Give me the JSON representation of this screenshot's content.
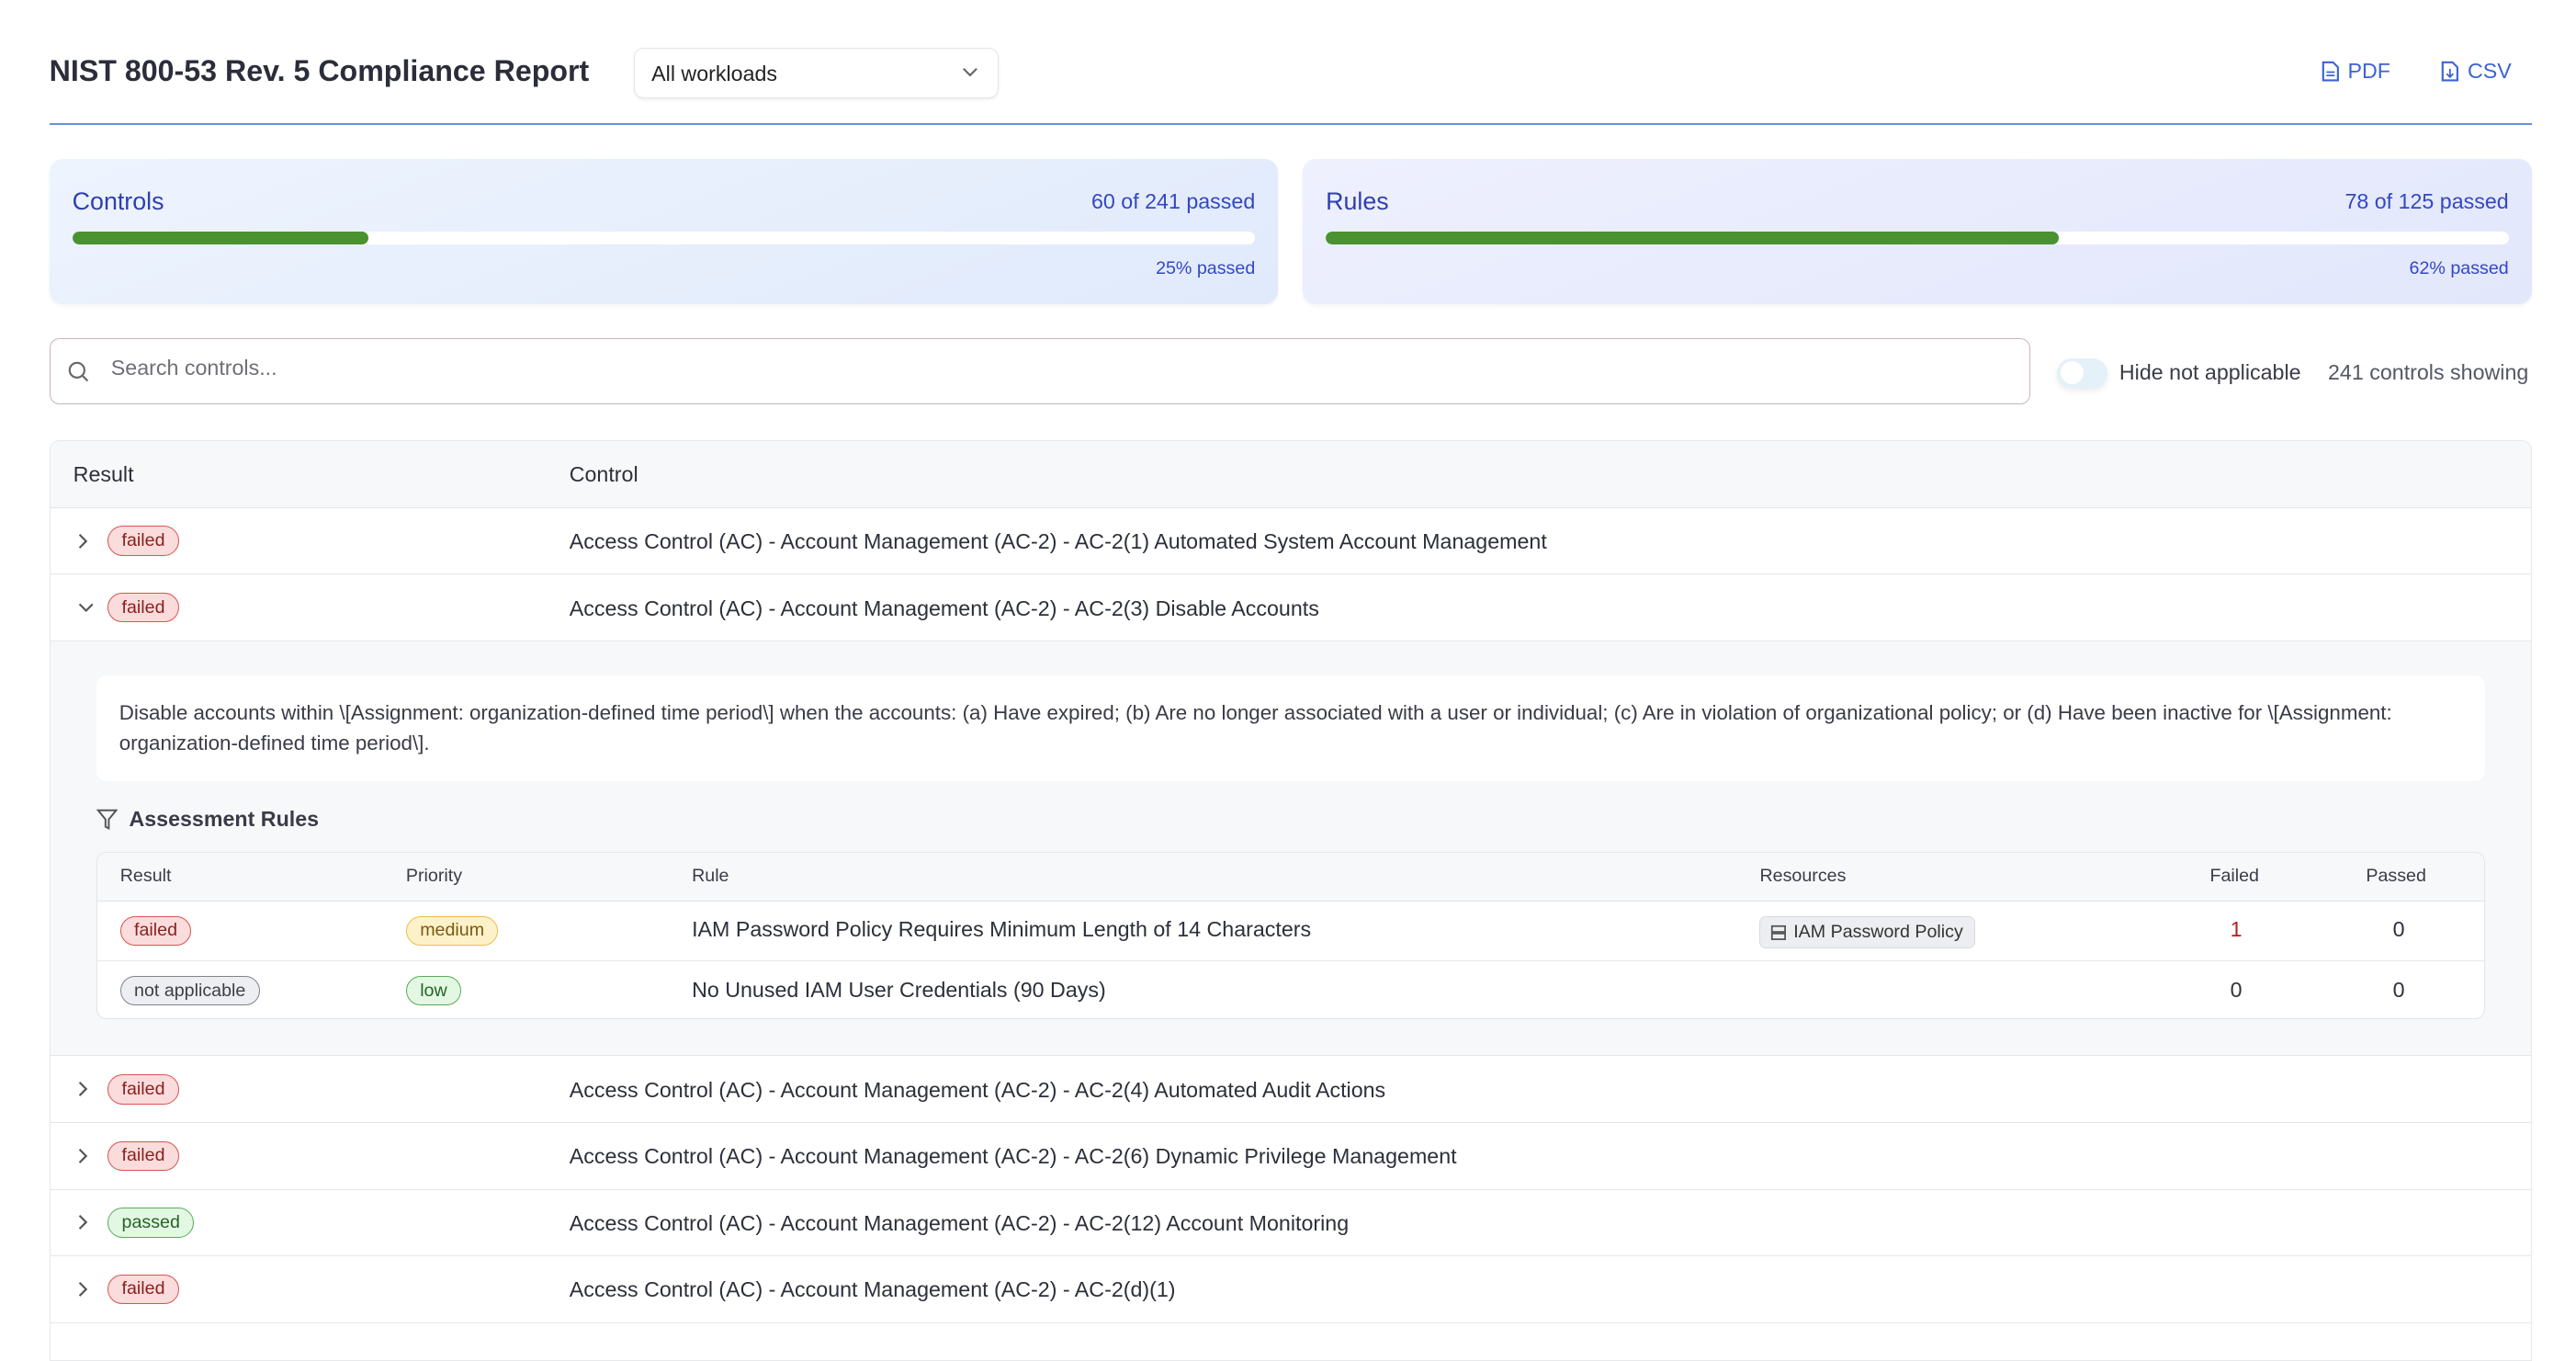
{
  "header": {
    "title": "NIST 800-53 Rev. 5 Compliance Report",
    "workload_select": "All workloads",
    "pdf_label": "PDF",
    "csv_label": "CSV"
  },
  "summary": {
    "controls": {
      "title": "Controls",
      "count": "60 of 241 passed",
      "percent_label": "25% passed",
      "percent": 25
    },
    "rules": {
      "title": "Rules",
      "count": "78 of 125 passed",
      "percent_label": "62% passed",
      "percent": 62
    }
  },
  "filters": {
    "search_placeholder": "Search controls...",
    "search_value": "",
    "hide_na_label": "Hide not applicable",
    "hide_na_on": false,
    "showing": "241 controls showing"
  },
  "table": {
    "headers": {
      "result": "Result",
      "control": "Control"
    },
    "rows": [
      {
        "result": "failed",
        "control": "Access Control (AC) - Account Management (AC-2) - AC-2(1) Automated System Account Management",
        "expanded": false
      },
      {
        "result": "failed",
        "control": "Access Control (AC) - Account Management (AC-2) - AC-2(3) Disable Accounts",
        "expanded": true
      },
      {
        "result": "failed",
        "control": "Access Control (AC) - Account Management (AC-2) - AC-2(4) Automated Audit Actions",
        "expanded": false
      },
      {
        "result": "failed",
        "control": "Access Control (AC) - Account Management (AC-2) - AC-2(6) Dynamic Privilege Management",
        "expanded": false
      },
      {
        "result": "passed",
        "control": "Access Control (AC) - Account Management (AC-2) - AC-2(12) Account Monitoring",
        "expanded": false
      },
      {
        "result": "failed",
        "control": "Access Control (AC) - Account Management (AC-2) - AC-2(d)(1)",
        "expanded": false
      }
    ]
  },
  "expanded": {
    "description": "Disable accounts within \\[Assignment: organization-defined time period\\] when the accounts: (a) Have expired; (b) Are no longer associated with a user or individual; (c) Are in violation of organizational policy; or (d) Have been inactive for \\[Assignment: organization-defined time period\\].",
    "rules_title": "Assessment Rules",
    "headers": {
      "result": "Result",
      "priority": "Priority",
      "rule": "Rule",
      "resources": "Resources",
      "failed": "Failed",
      "passed": "Passed"
    },
    "rules": [
      {
        "result": "failed",
        "priority": "medium",
        "rule": "IAM Password Policy Requires Minimum Length of 14 Characters",
        "resource": "IAM Password Policy",
        "failed": "1",
        "passed": "0"
      },
      {
        "result": "not applicable",
        "priority": "low",
        "rule": "No Unused IAM User Credentials (90 Days)",
        "resource": "",
        "failed": "0",
        "passed": "0"
      }
    ]
  },
  "colors": {
    "accent": "#3b63d6",
    "progress": "#4a9230",
    "failed": "#d9534f",
    "passed": "#5aaa5a"
  }
}
